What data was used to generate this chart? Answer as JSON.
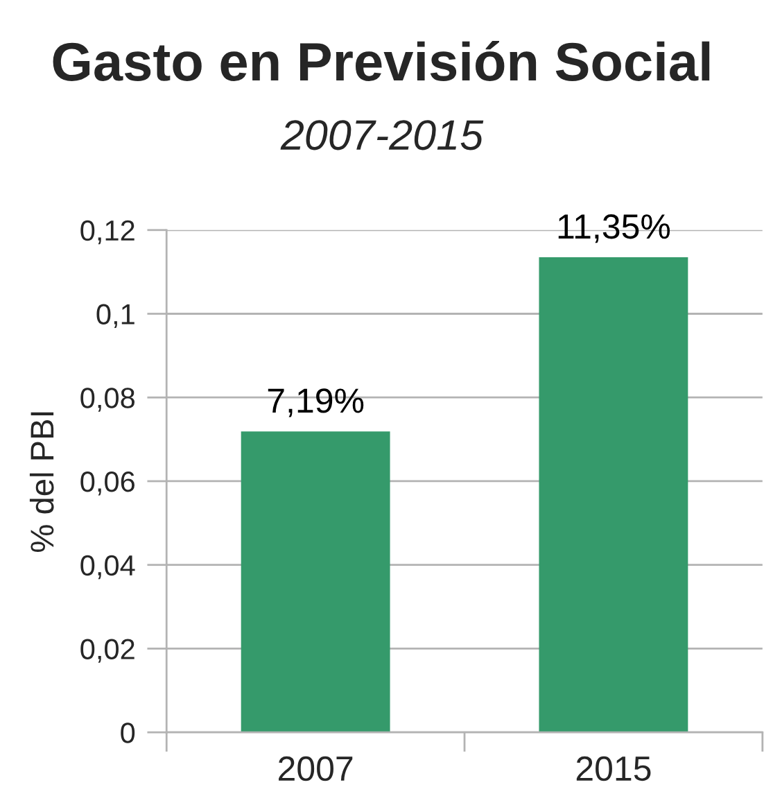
{
  "chart_data": {
    "type": "bar",
    "title": "Gasto en Previsión Social",
    "subtitle": "2007-2015",
    "ylabel": "% del PBI",
    "categories": [
      "2007",
      "2015"
    ],
    "values": [
      0.0719,
      0.1135
    ],
    "value_labels": [
      "7,19%",
      "11,35%"
    ],
    "color": "#359a6b",
    "ylim": [
      0,
      0.12
    ],
    "yticks": [
      0,
      {
        "value": 0.02,
        "label": "0,02"
      },
      {
        "value": 0.04,
        "label": "0,04"
      },
      {
        "value": 0.06,
        "label": "0,06"
      },
      {
        "value": 0.08,
        "label": "0,08"
      },
      {
        "value": 0.1,
        "label": "0,1"
      },
      {
        "value": 0.12,
        "label": "0,12"
      }
    ],
    "grid": "y",
    "legend": false
  }
}
